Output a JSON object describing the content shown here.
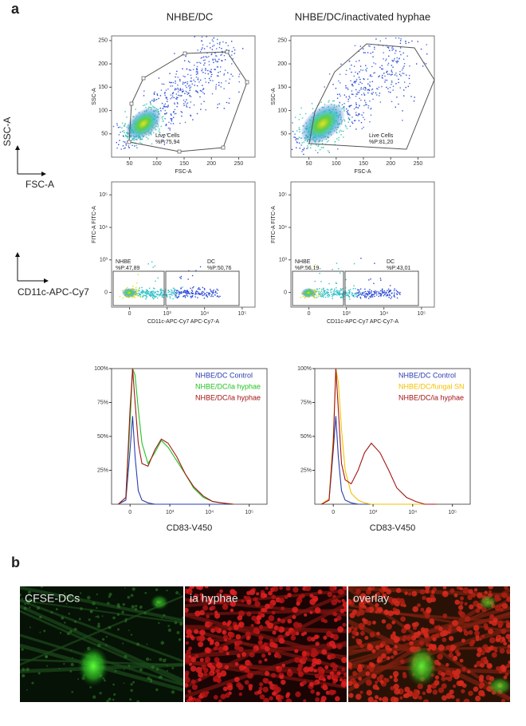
{
  "figure": {
    "panel_a": "a",
    "panel_b": "b",
    "column_titles": [
      "NHBE/DC",
      "NHBE/DC/inactivated hyphae"
    ],
    "scatter_axes": {
      "y": "SSC-A",
      "x": "FSC-A"
    },
    "marker_axes": {
      "x": "CD11c-APC-Cy7"
    }
  },
  "density_plots": [
    {
      "xlabel": "FSC-A",
      "ylabel": "SSC-A",
      "xlim": [
        17,
        280
      ],
      "ylim": [
        0,
        260
      ],
      "xticks": [
        50,
        100,
        150,
        200,
        250
      ],
      "yticks": [
        50,
        100,
        150,
        200,
        250
      ],
      "gates": [
        {
          "name": "Live Cells",
          "percent": "%P:75,94"
        }
      ]
    },
    {
      "xlabel": "FSC-A",
      "ylabel": "SSC-A",
      "xlim": [
        17,
        280
      ],
      "ylim": [
        0,
        260
      ],
      "xticks": [
        50,
        100,
        150,
        200,
        250
      ],
      "yticks": [
        50,
        100,
        150,
        200,
        250
      ],
      "gates": [
        {
          "name": "Live Cells",
          "percent": "%P:81,20"
        }
      ]
    },
    {
      "xlabel": "CD11c-APC-Cy7 APC-Cy7-A",
      "ylabel": "FITC-A FITC-A",
      "scale": "asinh",
      "xlim": [
        -270,
        220000
      ],
      "ylim": [
        -250,
        250000
      ],
      "xticks": [
        0,
        {
          "value": 1000,
          "label": "10³"
        },
        {
          "value": 10000,
          "label": "10⁴"
        },
        {
          "value": 100000,
          "label": "10⁵"
        }
      ],
      "yticks": [
        0,
        {
          "value": 1000,
          "label": "10³"
        },
        {
          "value": 10000,
          "label": "10⁴"
        },
        {
          "value": 100000,
          "label": "10⁵"
        }
      ],
      "gates": [
        {
          "name": "NHBE",
          "percent": "%P:47,89"
        },
        {
          "name": "DC",
          "percent": "%P:50,76"
        }
      ]
    },
    {
      "xlabel": "CD11c-APC-Cy7 APC-Cy7-A",
      "ylabel": "FITC-A FITC-A",
      "scale": "asinh",
      "xlim": [
        -270,
        220000
      ],
      "ylim": [
        -250,
        250000
      ],
      "xticks": [
        0,
        {
          "value": 1000,
          "label": "10³"
        },
        {
          "value": 10000,
          "label": "10⁴"
        },
        {
          "value": 100000,
          "label": "10⁵"
        }
      ],
      "yticks": [
        0,
        {
          "value": 1000,
          "label": "10³"
        },
        {
          "value": 10000,
          "label": "10⁴"
        },
        {
          "value": 100000,
          "label": "10⁵"
        }
      ],
      "gates": [
        {
          "name": "NHBE",
          "percent": "%P:56,19"
        },
        {
          "name": "DC",
          "percent": "%P:43,01"
        }
      ]
    }
  ],
  "chart_data": [
    {
      "type": "line",
      "xlabel": "CD83-V450",
      "xscale": "asinh",
      "xlim": [
        -260,
        280000
      ],
      "ylim": [
        0,
        100
      ],
      "xticks": [
        0,
        {
          "value": 1000,
          "label": "10³"
        },
        {
          "value": 10000,
          "label": "10⁴"
        },
        {
          "value": 100000,
          "label": "10⁵"
        }
      ],
      "yticks": [
        {
          "value": 25,
          "label": "25%"
        },
        {
          "value": 50,
          "label": "50%"
        },
        {
          "value": 75,
          "label": "75%"
        },
        {
          "value": 100,
          "label": "100%"
        }
      ],
      "x": [
        -150,
        -50,
        0,
        30,
        60,
        100,
        150,
        250,
        400,
        600,
        900,
        1500,
        2500,
        4000,
        7000,
        12000,
        20000,
        40000
      ],
      "series": [
        {
          "name": "NHBE/DC Control",
          "color": "#2a3cb0",
          "values": [
            0,
            3,
            40,
            65,
            35,
            10,
            3,
            1,
            0,
            0,
            0,
            0,
            0,
            0,
            0,
            0,
            0,
            0
          ]
        },
        {
          "name": "NHBE/DC/ia hyphae",
          "color": "#22c322",
          "values": [
            0,
            5,
            60,
            100,
            95,
            70,
            45,
            30,
            38,
            47,
            42,
            32,
            22,
            12,
            5,
            2,
            1,
            0
          ]
        },
        {
          "name": "NHBE/DC/ia hyphae",
          "color": "#a31515",
          "values": [
            0,
            5,
            70,
            100,
            75,
            45,
            30,
            28,
            40,
            48,
            45,
            35,
            22,
            13,
            6,
            2,
            1,
            0
          ]
        }
      ]
    },
    {
      "type": "line",
      "xlabel": "CD83-V450",
      "xscale": "asinh",
      "xlim": [
        -260,
        280000
      ],
      "ylim": [
        0,
        100
      ],
      "xticks": [
        0,
        {
          "value": 1000,
          "label": "10³"
        },
        {
          "value": 10000,
          "label": "10⁴"
        },
        {
          "value": 100000,
          "label": "10⁵"
        }
      ],
      "yticks": [
        {
          "value": 25,
          "label": "25%"
        },
        {
          "value": 50,
          "label": "50%"
        },
        {
          "value": 75,
          "label": "75%"
        },
        {
          "value": 100,
          "label": "100%"
        }
      ],
      "x": [
        -150,
        -50,
        0,
        30,
        60,
        100,
        150,
        250,
        400,
        600,
        900,
        1500,
        2500,
        4000,
        7000,
        12000,
        20000,
        40000
      ],
      "series": [
        {
          "name": "NHBE/DC Control",
          "color": "#2a3cb0",
          "values": [
            0,
            3,
            40,
            65,
            35,
            10,
            3,
            1,
            0,
            0,
            0,
            0,
            0,
            0,
            0,
            0,
            0,
            0
          ]
        },
        {
          "name": "NHBE/DC/fungal SN",
          "color": "#f2c200",
          "values": [
            0,
            4,
            50,
            100,
            90,
            55,
            25,
            8,
            3,
            1,
            0,
            0,
            0,
            0,
            0,
            0,
            0,
            0
          ]
        },
        {
          "name": "NHBE/DC/ia hyphae",
          "color": "#a31515",
          "values": [
            0,
            3,
            45,
            100,
            70,
            30,
            18,
            15,
            25,
            38,
            45,
            38,
            25,
            12,
            5,
            2,
            0,
            0
          ]
        }
      ]
    }
  ],
  "micrographs": [
    {
      "label": "CFSE-DCs"
    },
    {
      "label": "ia hyphae"
    },
    {
      "label": "overlay"
    }
  ]
}
